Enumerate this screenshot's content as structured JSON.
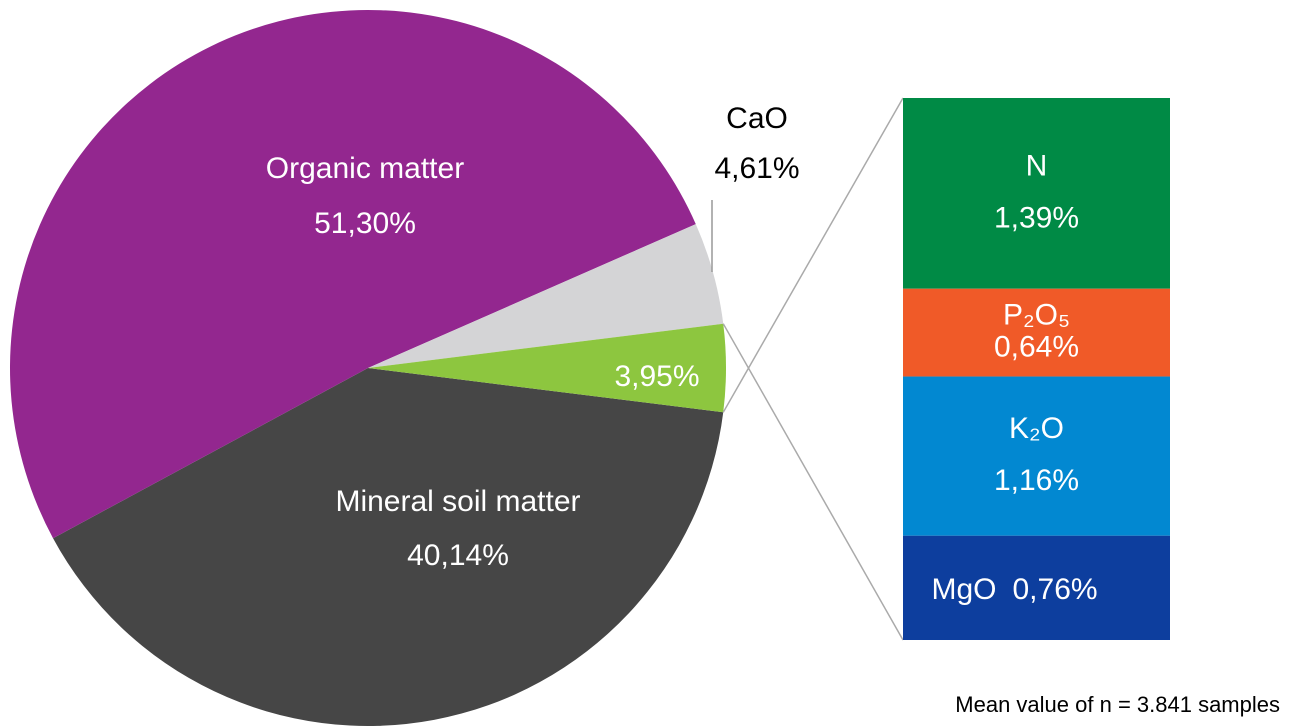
{
  "chart_data": {
    "type": "pie",
    "categories": [
      "Mineral soil matter",
      "Organic matter",
      "CaO",
      null
    ],
    "values": [
      40.14,
      51.3,
      4.61,
      3.95
    ],
    "value_labels": [
      "40,14%",
      "51,30%",
      "4,61%",
      "3,95%"
    ],
    "colors": [
      "#464646",
      "#93278f",
      "#d4d4d6",
      "#8dc63f"
    ],
    "bar": {
      "categories": [
        "N",
        "P₂O₅",
        "K₂O",
        "MgO"
      ],
      "values": [
        1.39,
        0.64,
        1.16,
        0.76
      ],
      "value_labels": [
        "1,39%",
        "0,64%",
        "1,16%",
        "0,76%"
      ],
      "colors": [
        "#008a45",
        "#f05a28",
        "#0288d1",
        "#0d3e9e"
      ]
    },
    "note": "Mean value of n = 3.841 samples"
  }
}
